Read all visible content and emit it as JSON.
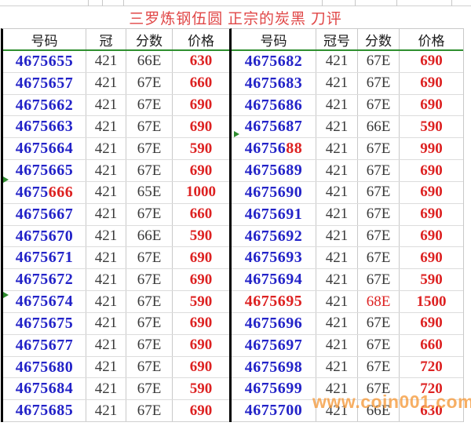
{
  "title": "三罗炼钢伍圆 正宗的炭黑 刀评",
  "watermark": "www.coin001.com",
  "colors": {
    "title_red": "#e04646",
    "serial_blue": "#2323c8",
    "price_red": "#dd2222",
    "header_underline_green": "#2f8f2f",
    "marker_green": "#2e8b2e",
    "watermark_orange": "#f59e42",
    "gridline_gray": "#c9c9c9",
    "thick_border_black": "#000000"
  },
  "tables": [
    {
      "id": "tbl-left",
      "headers": [
        "号码",
        "冠",
        "分数",
        "价格"
      ],
      "rows": [
        {
          "no": "4675655",
          "no_red": "",
          "crown": "421",
          "score": "66E",
          "score_red": false,
          "price": "630"
        },
        {
          "no": "4675657",
          "no_red": "",
          "crown": "421",
          "score": "67E",
          "score_red": false,
          "price": "660"
        },
        {
          "no": "4675662",
          "no_red": "",
          "crown": "421",
          "score": "67E",
          "score_red": false,
          "price": "690"
        },
        {
          "no": "4675663",
          "no_red": "",
          "crown": "421",
          "score": "67E",
          "score_red": false,
          "price": "690"
        },
        {
          "no": "4675664",
          "no_red": "",
          "crown": "421",
          "score": "67E",
          "score_red": false,
          "price": "590"
        },
        {
          "no": "4675665",
          "no_red": "",
          "crown": "421",
          "score": "67E",
          "score_red": false,
          "price": "690"
        },
        {
          "no": "4675",
          "no_red": "666",
          "crown": "421",
          "score": "65E",
          "score_red": false,
          "price": "1000"
        },
        {
          "no": "4675667",
          "no_red": "",
          "crown": "421",
          "score": "67E",
          "score_red": false,
          "price": "660"
        },
        {
          "no": "4675670",
          "no_red": "",
          "crown": "421",
          "score": "66E",
          "score_red": false,
          "price": "590"
        },
        {
          "no": "4675671",
          "no_red": "",
          "crown": "421",
          "score": "67E",
          "score_red": false,
          "price": "690"
        },
        {
          "no": "4675672",
          "no_red": "",
          "crown": "421",
          "score": "67E",
          "score_red": false,
          "price": "690"
        },
        {
          "no": "4675674",
          "no_red": "",
          "crown": "421",
          "score": "67E",
          "score_red": false,
          "price": "590"
        },
        {
          "no": "4675675",
          "no_red": "",
          "crown": "421",
          "score": "67E",
          "score_red": false,
          "price": "690"
        },
        {
          "no": "4675677",
          "no_red": "",
          "crown": "421",
          "score": "67E",
          "score_red": false,
          "price": "690"
        },
        {
          "no": "4675680",
          "no_red": "",
          "crown": "421",
          "score": "67E",
          "score_red": false,
          "price": "690"
        },
        {
          "no": "4675684",
          "no_red": "",
          "crown": "421",
          "score": "67E",
          "score_red": false,
          "price": "590"
        },
        {
          "no": "4675685",
          "no_red": "",
          "crown": "421",
          "score": "67E",
          "score_red": false,
          "price": "690"
        }
      ]
    },
    {
      "id": "tbl-right",
      "headers": [
        "号码",
        "冠号",
        "分数",
        "价格"
      ],
      "rows": [
        {
          "no": "4675682",
          "no_red": "",
          "crown": "421",
          "score": "67E",
          "score_red": false,
          "price": "690"
        },
        {
          "no": "4675683",
          "no_red": "",
          "crown": "421",
          "score": "67E",
          "score_red": false,
          "price": "690"
        },
        {
          "no": "4675686",
          "no_red": "",
          "crown": "421",
          "score": "67E",
          "score_red": false,
          "price": "690"
        },
        {
          "no": "4675687",
          "no_red": "",
          "crown": "421",
          "score": "66E",
          "score_red": false,
          "price": "590"
        },
        {
          "no": "46756",
          "no_red": "88",
          "crown": "421",
          "score": "67E",
          "score_red": false,
          "price": "990"
        },
        {
          "no": "4675689",
          "no_red": "",
          "crown": "421",
          "score": "67E",
          "score_red": false,
          "price": "690"
        },
        {
          "no": "4675690",
          "no_red": "",
          "crown": "421",
          "score": "67E",
          "score_red": false,
          "price": "690"
        },
        {
          "no": "4675691",
          "no_red": "",
          "crown": "421",
          "score": "67E",
          "score_red": false,
          "price": "690"
        },
        {
          "no": "4675692",
          "no_red": "",
          "crown": "421",
          "score": "67E",
          "score_red": false,
          "price": "690"
        },
        {
          "no": "4675693",
          "no_red": "",
          "crown": "421",
          "score": "67E",
          "score_red": false,
          "price": "690"
        },
        {
          "no": "4675694",
          "no_red": "",
          "crown": "421",
          "score": "67E",
          "score_red": false,
          "price": "590"
        },
        {
          "no": "",
          "no_red": "4675695",
          "crown": "421",
          "score": "68E",
          "score_red": true,
          "price": "1500"
        },
        {
          "no": "4675696",
          "no_red": "",
          "crown": "421",
          "score": "67E",
          "score_red": false,
          "price": "690"
        },
        {
          "no": "4675697",
          "no_red": "",
          "crown": "421",
          "score": "67E",
          "score_red": false,
          "price": "660"
        },
        {
          "no": "4675698",
          "no_red": "",
          "crown": "421",
          "score": "67E",
          "score_red": false,
          "price": "720"
        },
        {
          "no": "4675699",
          "no_red": "",
          "crown": "421",
          "score": "67E",
          "score_red": false,
          "price": "720"
        },
        {
          "no": "4675700",
          "no_red": "",
          "crown": "421",
          "score": "66E",
          "score_red": false,
          "price": "630"
        }
      ]
    }
  ]
}
